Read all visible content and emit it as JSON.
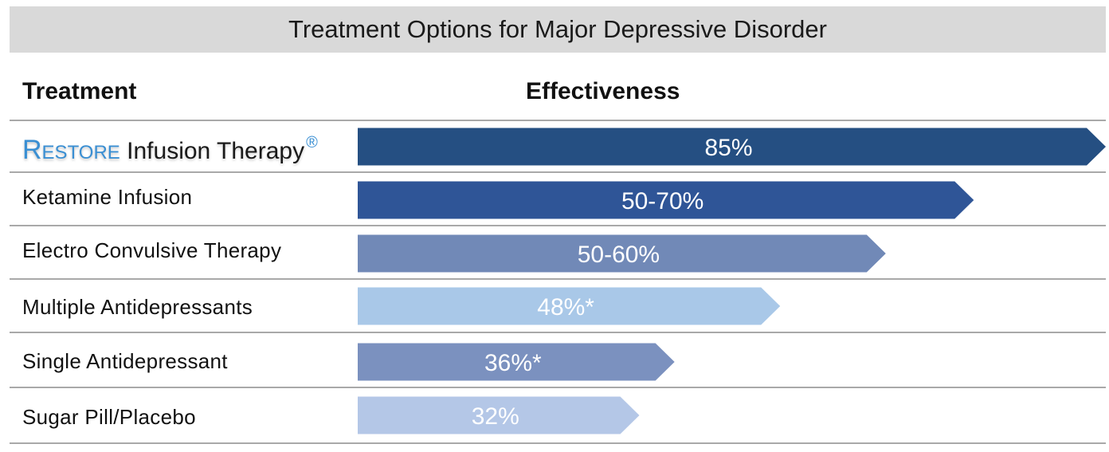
{
  "title": "Treatment Options for Major Depressive Disorder",
  "headers": {
    "treatment": "Treatment",
    "effectiveness": "Effectiveness"
  },
  "rows": [
    {
      "label_brand": "Restore",
      "label_rest": "Infusion Therapy",
      "label_mark": "®"
    },
    {
      "label": "Ketamine Infusion"
    },
    {
      "label": "Electro Convulsive Therapy"
    },
    {
      "label": "Multiple Antidepressants"
    },
    {
      "label": "Single Antidepressant"
    },
    {
      "label": "Sugar Pill/Placebo"
    }
  ],
  "chart_data": {
    "type": "bar",
    "orientation": "horizontal",
    "title": "Treatment Options for Major Depressive Disorder",
    "categories": [
      "RESTORE Infusion Therapy®",
      "Ketamine Infusion",
      "Electro Convulsive Therapy",
      "Multiple Antidepressants",
      "Single Antidepressant",
      "Sugar Pill/Placebo"
    ],
    "values": [
      85,
      70,
      60,
      48,
      36,
      32
    ],
    "value_labels": [
      "85%",
      "50-70%",
      "50-60%",
      "48%*",
      "36%*",
      "32%"
    ],
    "colors": [
      "#254f82",
      "#2f5597",
      "#7189b7",
      "#a9c8e8",
      "#7b91bf",
      "#b4c7e7"
    ],
    "label_colors": [
      "#ffffff",
      "#ffffff",
      "#ffffff",
      "#ffffff",
      "#ffffff",
      "#ffffff"
    ],
    "xlim": [
      0,
      85
    ],
    "grid": false
  }
}
